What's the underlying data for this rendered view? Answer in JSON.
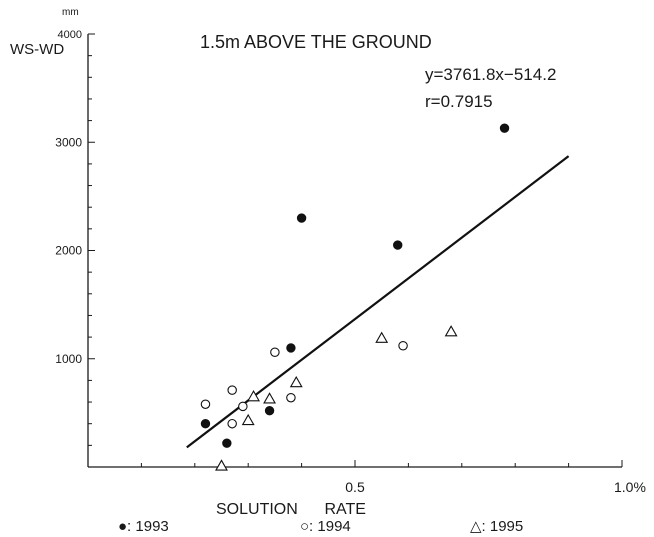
{
  "chart_data": {
    "type": "scatter",
    "title": "1.5m ABOVE THE GROUND",
    "equation": "y=3761.8x−514.2",
    "correlation": "r=0.7915",
    "xlabel": "SOLUTION      RATE",
    "ylabel": "WS-WD",
    "y_unit": "mm",
    "xlim": [
      0,
      1.0
    ],
    "ylim": [
      0,
      4000
    ],
    "x_ticks": [
      {
        "value": 0.5,
        "label": "0.5"
      },
      {
        "value": 1.0,
        "label": "1.0%"
      }
    ],
    "y_ticks": [
      {
        "value": 1000,
        "label": "1000"
      },
      {
        "value": 2000,
        "label": "2000"
      },
      {
        "value": 3000,
        "label": "3000"
      },
      {
        "value": 4000,
        "label": "4000"
      }
    ],
    "grid": false,
    "fit_line": {
      "slope": 3761.8,
      "intercept": -514.2,
      "x_start": 0.185,
      "x_end": 0.9
    },
    "legend_position": "bottom",
    "series": [
      {
        "name": "1993",
        "legend_label": "●: 1993",
        "marker": "filled-circle",
        "points": [
          [
            0.22,
            400
          ],
          [
            0.26,
            220
          ],
          [
            0.34,
            520
          ],
          [
            0.38,
            1100
          ],
          [
            0.4,
            2300
          ],
          [
            0.58,
            2050
          ],
          [
            0.78,
            3130
          ]
        ]
      },
      {
        "name": "1994",
        "legend_label": "○: 1994",
        "marker": "open-circle",
        "points": [
          [
            0.22,
            580
          ],
          [
            0.27,
            710
          ],
          [
            0.27,
            400
          ],
          [
            0.29,
            560
          ],
          [
            0.35,
            1060
          ],
          [
            0.38,
            640
          ],
          [
            0.59,
            1120
          ]
        ]
      },
      {
        "name": "1995",
        "legend_label": "△: 1995",
        "marker": "open-triangle",
        "points": [
          [
            0.25,
            10
          ],
          [
            0.3,
            430
          ],
          [
            0.31,
            650
          ],
          [
            0.34,
            630
          ],
          [
            0.39,
            780
          ],
          [
            0.55,
            1190
          ],
          [
            0.68,
            1250
          ]
        ]
      }
    ]
  }
}
